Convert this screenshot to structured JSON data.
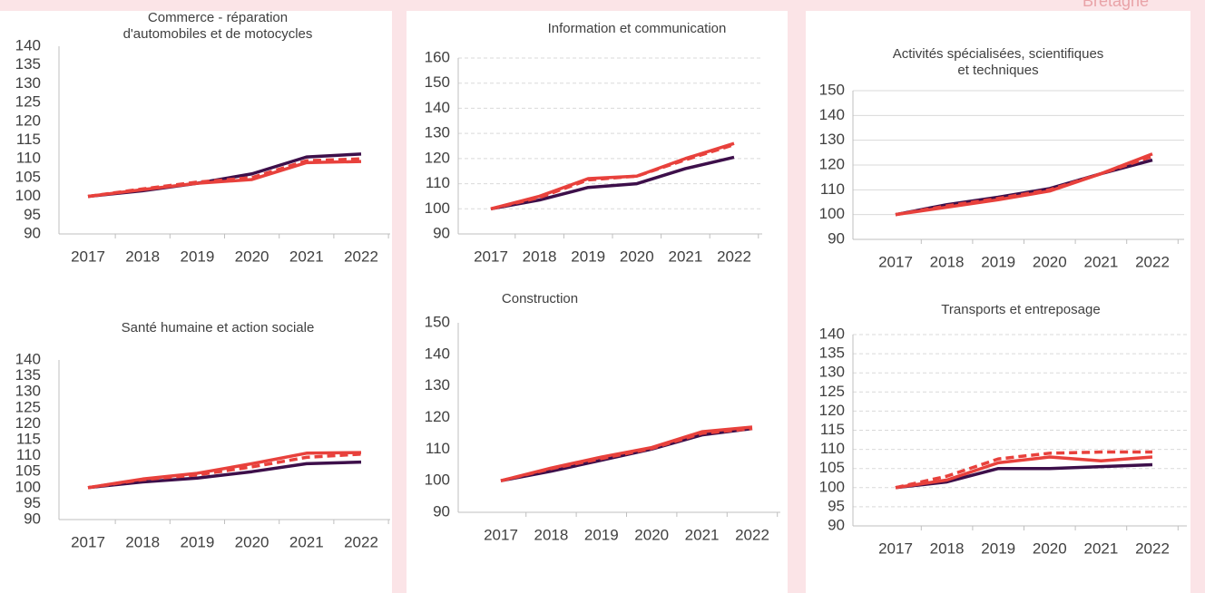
{
  "corner_label": "Bretagne",
  "chart_data": [
    {
      "type": "line",
      "title": [
        "Commerce -  réparation",
        "d'automobiles et de motocycles"
      ],
      "categories": [
        "2017",
        "2018",
        "2019",
        "2020",
        "2021",
        "2022"
      ],
      "series": [
        {
          "color": "#3d0f4a",
          "line_style": "solid",
          "values": [
            100,
            101.5,
            103.5,
            106,
            110.5,
            111.3
          ]
        },
        {
          "color": "#e8413c",
          "line_style": "solid",
          "values": [
            100,
            101.8,
            103.5,
            104.5,
            109,
            109.3
          ]
        },
        {
          "color": "#e8413c",
          "line_style": "dashed",
          "values": [
            100,
            102,
            103.8,
            105,
            109.5,
            110
          ]
        }
      ],
      "ylim": [
        90,
        140
      ],
      "yticks": [
        90,
        95,
        100,
        105,
        110,
        115,
        120,
        125,
        130,
        135,
        140
      ],
      "grid": "none"
    },
    {
      "type": "line",
      "title": [
        "Information et communication"
      ],
      "categories": [
        "2017",
        "2018",
        "2019",
        "2020",
        "2021",
        "2022"
      ],
      "series": [
        {
          "color": "#3d0f4a",
          "line_style": "solid",
          "values": [
            100,
            103.5,
            108.5,
            110,
            116,
            120.5
          ]
        },
        {
          "color": "#e8413c",
          "line_style": "solid",
          "values": [
            100,
            105,
            112,
            113,
            120,
            126
          ]
        },
        {
          "color": "#e8413c",
          "line_style": "dashed",
          "values": [
            100,
            104.5,
            111.5,
            113,
            119.5,
            125.5
          ]
        }
      ],
      "ylim": [
        90,
        160
      ],
      "yticks": [
        90,
        100,
        110,
        120,
        130,
        140,
        150,
        160
      ],
      "grid": "dashed"
    },
    {
      "type": "line",
      "title": [
        "Activités spécialisées, scientifiques",
        "et techniques"
      ],
      "categories": [
        "2017",
        "2018",
        "2019",
        "2020",
        "2021",
        "2022"
      ],
      "series": [
        {
          "color": "#3d0f4a",
          "line_style": "solid",
          "values": [
            100,
            104,
            107,
            110.5,
            116.5,
            122
          ]
        },
        {
          "color": "#e8413c",
          "line_style": "solid",
          "values": [
            100,
            103,
            106,
            109.5,
            116.5,
            124.5
          ]
        },
        {
          "color": "#e8413c",
          "line_style": "dashed",
          "values": [
            100,
            103.5,
            106.5,
            110,
            116.5,
            123.5
          ]
        }
      ],
      "ylim": [
        90,
        150
      ],
      "yticks": [
        90,
        100,
        110,
        120,
        130,
        140,
        150
      ],
      "grid": "solid"
    },
    {
      "type": "line",
      "title": [
        "Santé humaine et action sociale"
      ],
      "categories": [
        "2017",
        "2018",
        "2019",
        "2020",
        "2021",
        "2022"
      ],
      "series": [
        {
          "color": "#3d0f4a",
          "line_style": "solid",
          "values": [
            100,
            101.8,
            103,
            105,
            107.5,
            108
          ]
        },
        {
          "color": "#e8413c",
          "line_style": "solid",
          "values": [
            100,
            102.7,
            104.5,
            107.5,
            110.8,
            111
          ]
        },
        {
          "color": "#e8413c",
          "line_style": "dashed",
          "values": [
            100,
            102.5,
            104,
            106.5,
            109.5,
            110.5
          ]
        }
      ],
      "ylim": [
        90,
        140
      ],
      "yticks": [
        90,
        95,
        100,
        105,
        110,
        115,
        120,
        125,
        130,
        135,
        140
      ],
      "grid": "none"
    },
    {
      "type": "line",
      "title": [
        "Construction"
      ],
      "categories": [
        "2017",
        "2018",
        "2019",
        "2020",
        "2021",
        "2022"
      ],
      "series": [
        {
          "color": "#3d0f4a",
          "line_style": "solid",
          "values": [
            100,
            103,
            106.5,
            110,
            114.5,
            116.5
          ]
        },
        {
          "color": "#e8413c",
          "line_style": "solid",
          "values": [
            100,
            104,
            107.5,
            110.5,
            115.5,
            117
          ]
        },
        {
          "color": "#e8413c",
          "line_style": "dashed",
          "values": [
            100,
            103.8,
            107,
            110.2,
            115,
            116.5
          ]
        }
      ],
      "ylim": [
        90,
        150
      ],
      "yticks": [
        90,
        100,
        110,
        120,
        130,
        140,
        150
      ],
      "grid": "none"
    },
    {
      "type": "line",
      "title": [
        "Transports et entreposage"
      ],
      "categories": [
        "2017",
        "2018",
        "2019",
        "2020",
        "2021",
        "2022"
      ],
      "series": [
        {
          "color": "#3d0f4a",
          "line_style": "solid",
          "values": [
            100,
            101.5,
            105,
            105,
            105.5,
            106
          ]
        },
        {
          "color": "#e8413c",
          "line_style": "solid",
          "values": [
            100,
            102,
            106.5,
            108,
            107,
            108
          ]
        },
        {
          "color": "#e8413c",
          "line_style": "dashed",
          "values": [
            100,
            103,
            107.5,
            109,
            109.3,
            109.3
          ]
        }
      ],
      "ylim": [
        90,
        140
      ],
      "yticks": [
        90,
        95,
        100,
        105,
        110,
        115,
        120,
        125,
        130,
        135,
        140
      ],
      "grid": "dashed"
    }
  ]
}
